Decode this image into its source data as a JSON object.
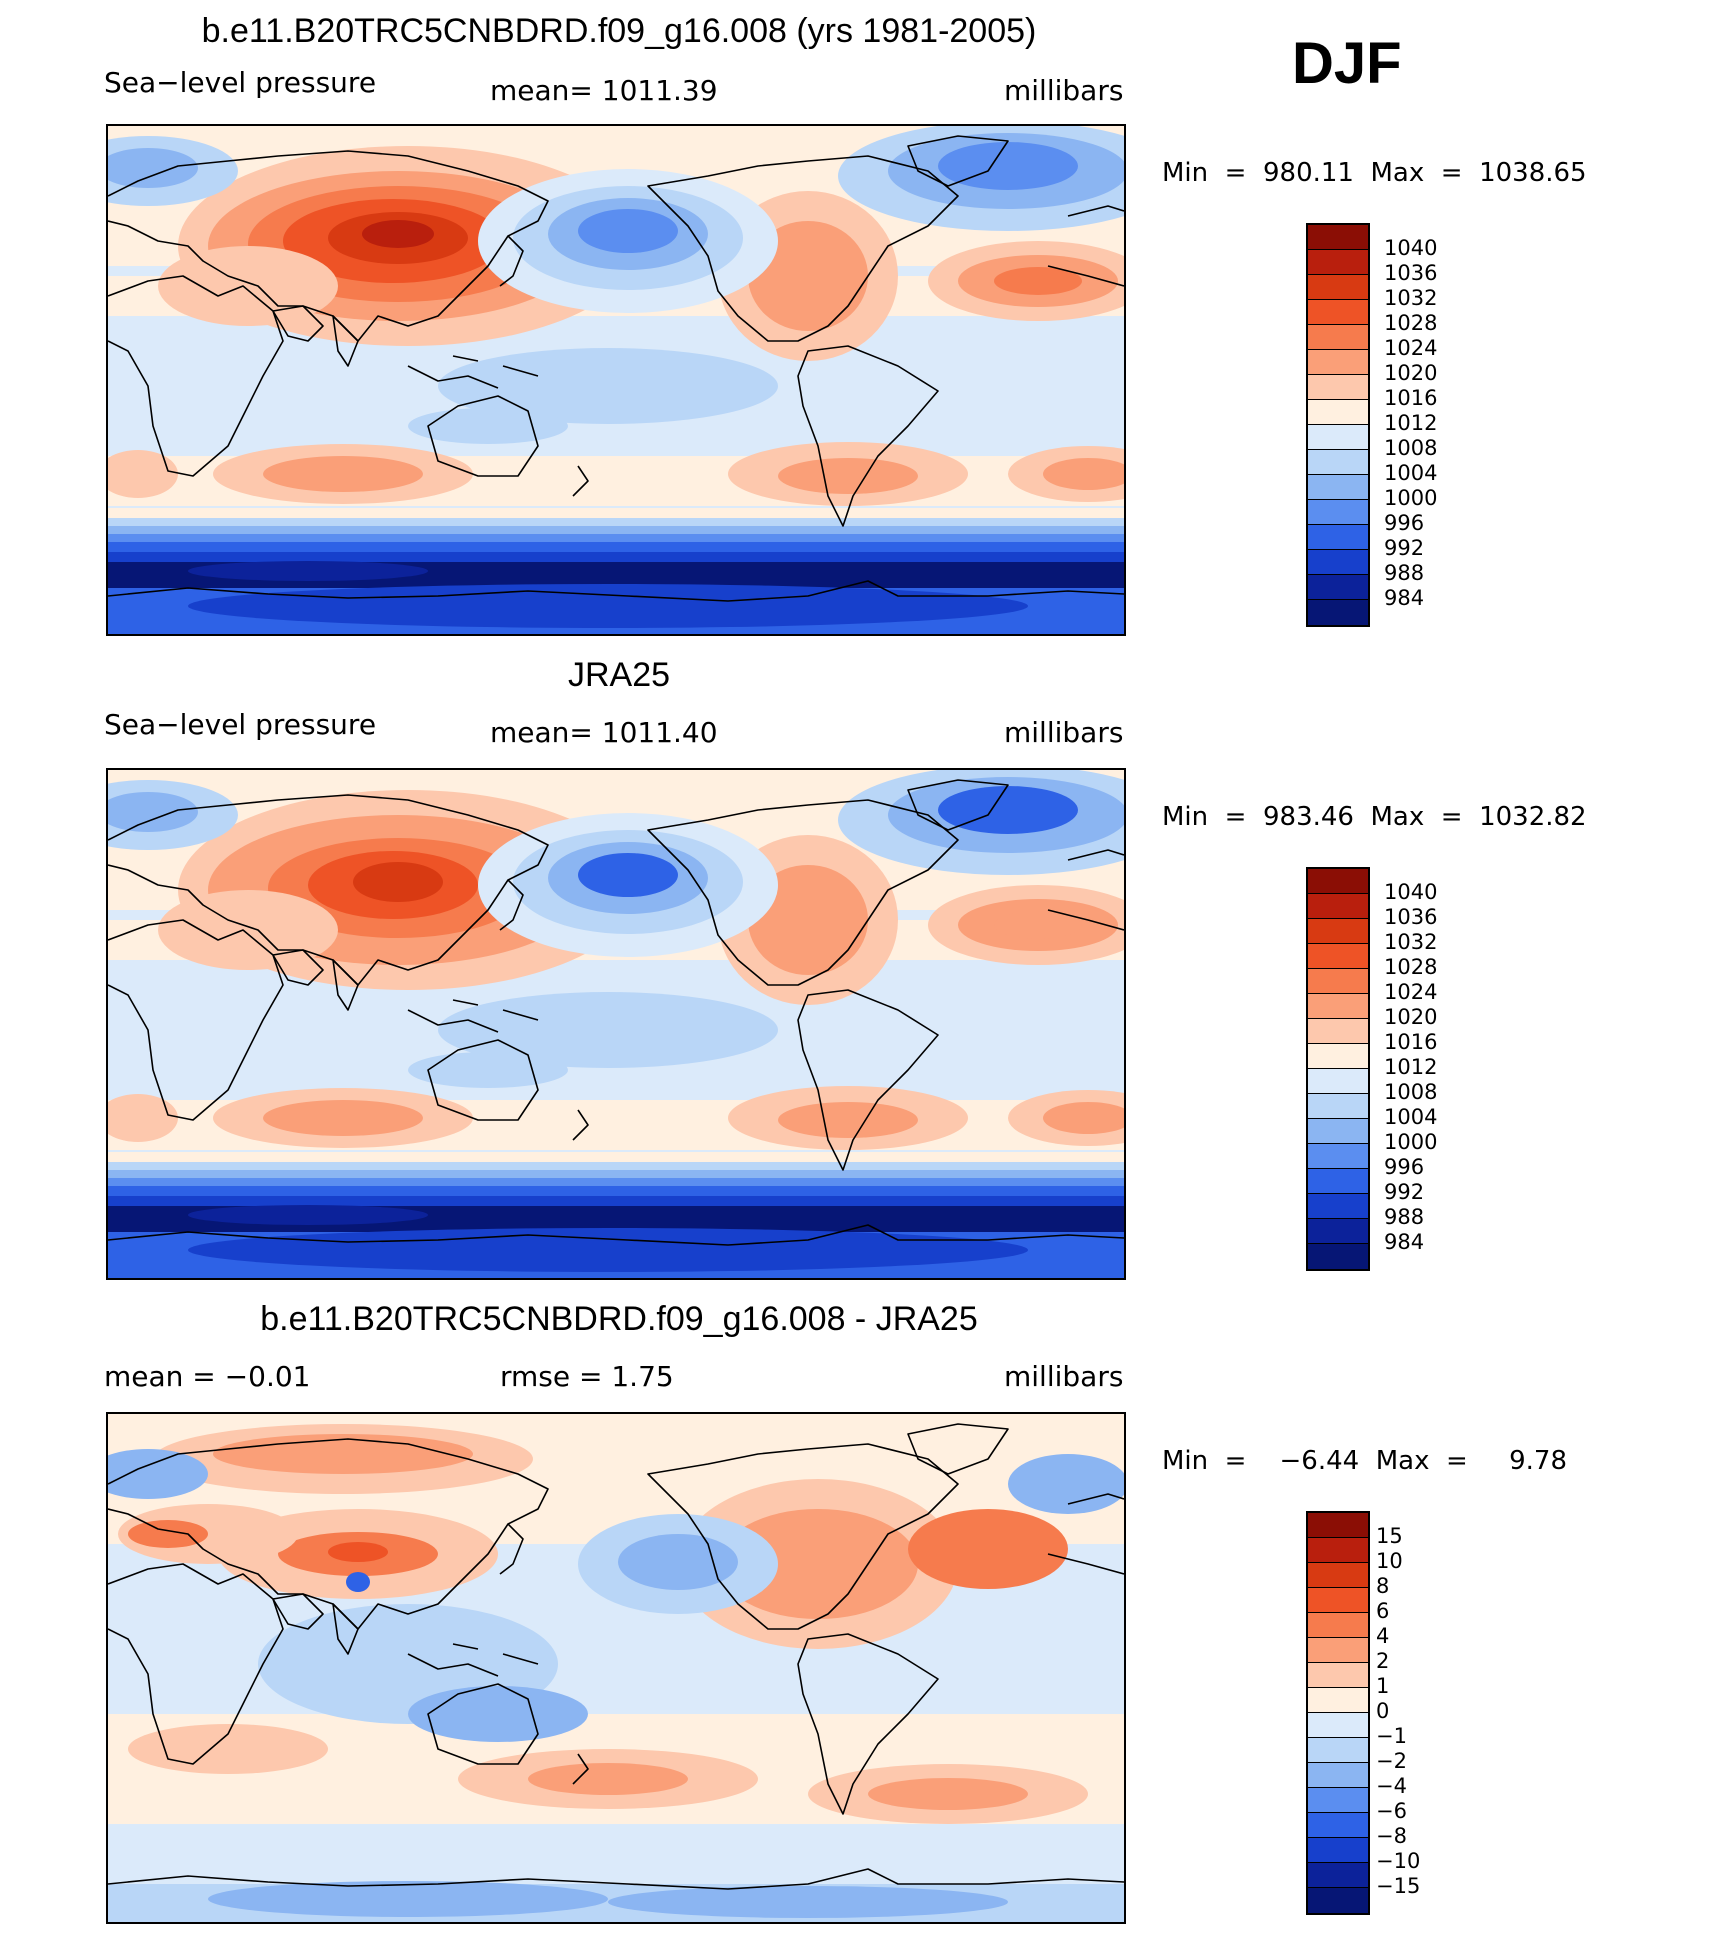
{
  "season": "DJF",
  "panels": [
    {
      "title": "b.e11.B20TRC5CNBDRD.f09_g16.008 (yrs 1981-2005)",
      "left": "Sea−level pressure",
      "center": "mean=  1011.39",
      "right": "millibars",
      "minmax": "Min  =  980.11  Max  =  1038.65",
      "colorbar": {
        "levels": [
          "1040",
          "1036",
          "1032",
          "1028",
          "1024",
          "1020",
          "1016",
          "1012",
          "1008",
          "1004",
          "1000",
          "996",
          "992",
          "988",
          "984"
        ]
      }
    },
    {
      "title": "JRA25",
      "left": "Sea−level pressure",
      "center": "mean=  1011.40",
      "right": "millibars",
      "minmax": "Min  =  983.46  Max  =  1032.82",
      "colorbar": {
        "levels": [
          "1040",
          "1036",
          "1032",
          "1028",
          "1024",
          "1020",
          "1016",
          "1012",
          "1008",
          "1004",
          "1000",
          "996",
          "992",
          "988",
          "984"
        ]
      }
    },
    {
      "title": "b.e11.B20TRC5CNBDRD.f09_g16.008 - JRA25",
      "left": "mean  =     −0.01",
      "center": "rmse  =     1.75",
      "right": "millibars",
      "minmax": "Min  =    −6.44  Max  =     9.78",
      "colorbar": {
        "levels": [
          "15",
          "10",
          "8",
          "6",
          "4",
          "2",
          "1",
          "0",
          "−1",
          "−2",
          "−4",
          "−6",
          "−8",
          "−10",
          "−15"
        ]
      }
    }
  ],
  "palette": [
    "#8b0e05",
    "#b91f0d",
    "#d83a12",
    "#ee5326",
    "#f67b4d",
    "#fa9f78",
    "#fdc8ad",
    "#fff0e0",
    "#dbeafa",
    "#b9d6f7",
    "#8bb5f2",
    "#5b8ef0",
    "#2e62e6",
    "#1740cc",
    "#0c229a",
    "#061675"
  ]
}
